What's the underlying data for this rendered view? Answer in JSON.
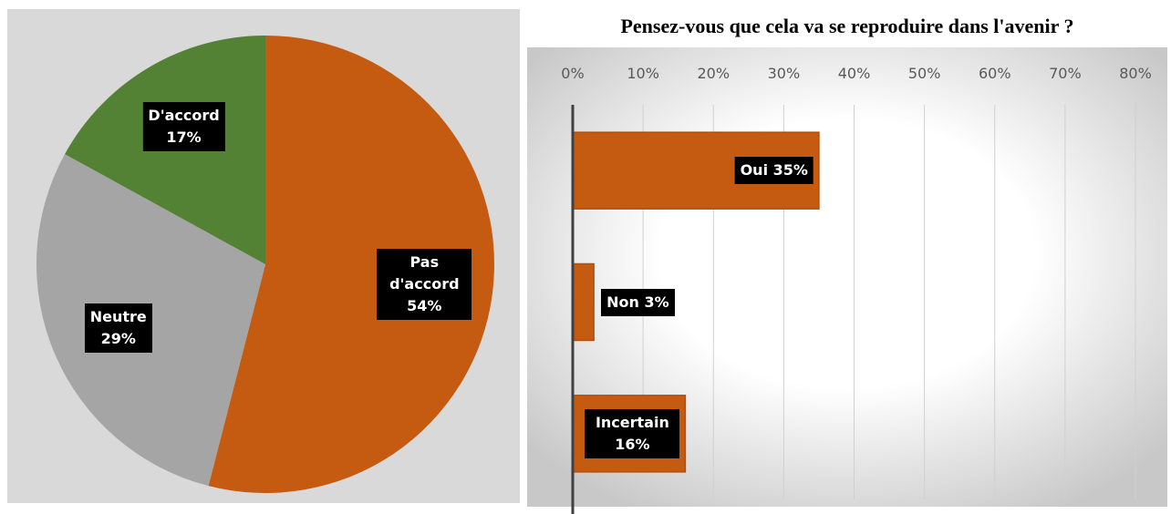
{
  "chart_data": [
    {
      "type": "pie",
      "categories": [
        "Pas d'accord",
        "Neutre",
        "D'accord"
      ],
      "values": [
        54,
        29,
        17
      ],
      "value_labels": [
        "54%",
        "29%",
        "17%"
      ],
      "colors": [
        "#c55a11",
        "#a5a5a5",
        "#548235"
      ]
    },
    {
      "type": "hbar",
      "title": "Pensez-vous que cela va se reproduire dans l'avenir ?",
      "categories": [
        "Oui",
        "Non",
        "Incertain"
      ],
      "values": [
        35,
        3,
        16
      ],
      "value_labels": [
        "35%",
        "3%",
        "16%"
      ],
      "color": "#c55a11",
      "xlim": [
        0,
        80
      ],
      "xticks": [
        {
          "value": 0,
          "label": "0%"
        },
        {
          "value": 10,
          "label": "10%"
        },
        {
          "value": 20,
          "label": "20%"
        },
        {
          "value": 30,
          "label": "30%"
        },
        {
          "value": 40,
          "label": "40%"
        },
        {
          "value": 50,
          "label": "50%"
        },
        {
          "value": 60,
          "label": "60%"
        },
        {
          "value": 70,
          "label": "70%"
        },
        {
          "value": 80,
          "label": "80%"
        }
      ],
      "grid": true
    }
  ]
}
